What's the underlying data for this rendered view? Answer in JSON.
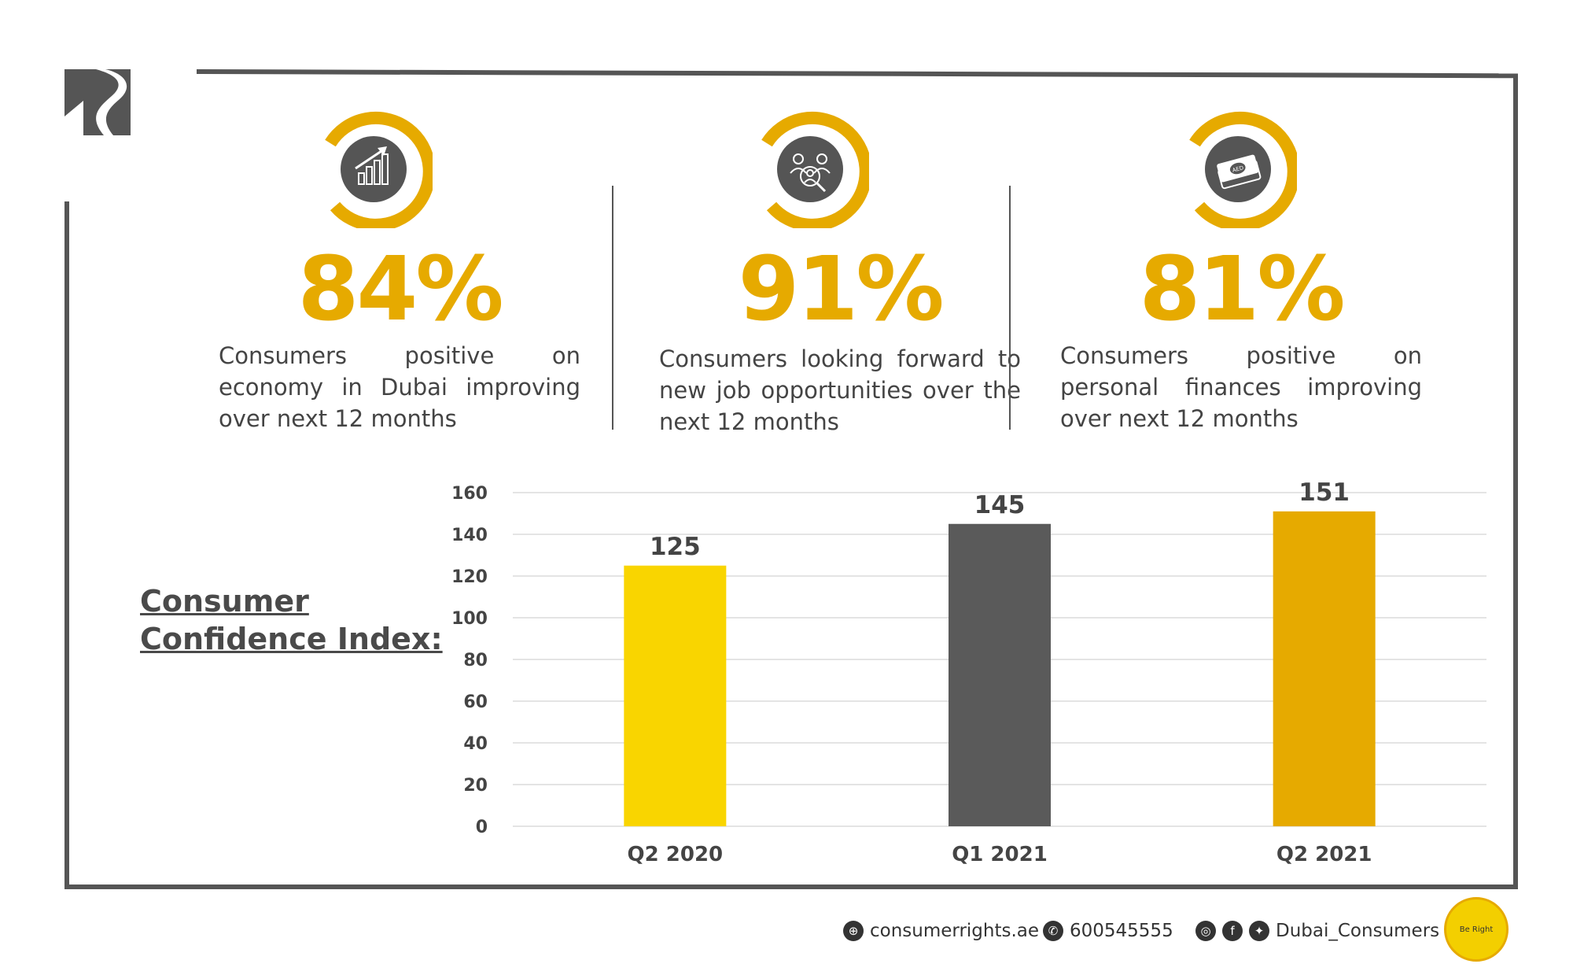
{
  "colors": {
    "gold": "#e6aa00",
    "yellow": "#f9d500",
    "dark": "#5a5a5a",
    "frame": "#555555"
  },
  "stats": [
    {
      "value": "84%",
      "description": "Consumers positive on economy in Dubai improving over next 12 months",
      "icon": "growth-chart-icon"
    },
    {
      "value": "91%",
      "description": "Consumers looking forward to new job opportunities over the next 12 months",
      "icon": "people-search-icon"
    },
    {
      "value": "81%",
      "description": "Consumers positive on personal finances improving over next 12 months",
      "icon": "aed-money-icon",
      "icon_text": "AED"
    }
  ],
  "chart_title_line1": "Consumer",
  "chart_title_line2": "Confidence Index:",
  "chart_data": {
    "type": "bar",
    "title": "Consumer Confidence Index:",
    "categories": [
      "Q2 2020",
      "Q1 2021",
      "Q2 2021"
    ],
    "values": [
      125,
      145,
      151
    ],
    "bar_colors": [
      "#f9d500",
      "#5a5a5a",
      "#e6aa00"
    ],
    "data_labels": [
      "125",
      "145",
      "151"
    ],
    "ylim": [
      0,
      160
    ],
    "yticks": [
      0,
      20,
      40,
      60,
      80,
      100,
      120,
      140,
      160
    ],
    "grid": true,
    "xlabel": "",
    "ylabel": ""
  },
  "footer": {
    "website": "consumerrights.ae",
    "phone": "600545555",
    "social": "Dubai_Consumers",
    "badge_text": "Be Right"
  }
}
